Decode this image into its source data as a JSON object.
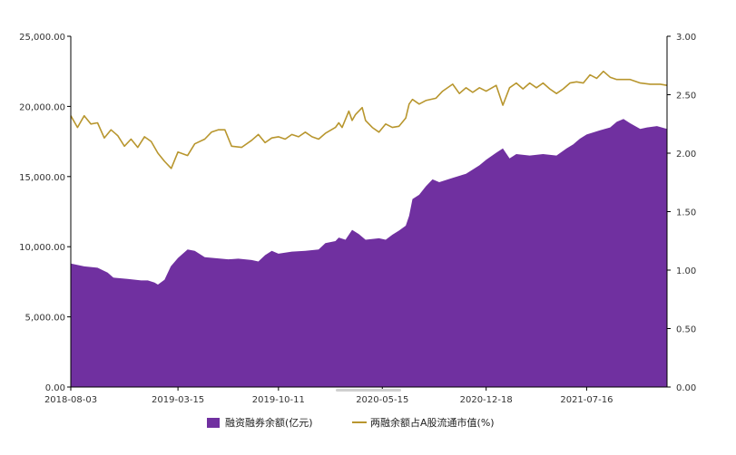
{
  "chart_data": {
    "type": "area",
    "x_ticks": [
      "2018-08-03",
      "2019-03-15",
      "2019-10-11",
      "2020-05-15",
      "2020-12-18",
      "2021-07-16"
    ],
    "x_range": [
      "2018-08-03",
      "2021-12-31"
    ],
    "y_left": {
      "min": 0,
      "max": 25000,
      "ticks": [
        "0.00",
        "5,000.00",
        "10,000.00",
        "15,000.00",
        "20,000.00",
        "25,000.00"
      ]
    },
    "y_right": {
      "min": 0,
      "max": 3,
      "ticks": [
        "0.00",
        "0.50",
        "1.00",
        "1.50",
        "2.00",
        "2.50",
        "3.00"
      ]
    },
    "grid": false,
    "legend_position": "bottom",
    "colors": {
      "area": "#7030A0",
      "line": "#B8962E",
      "axis": "#000000"
    },
    "series": [
      {
        "name": "融资融券余额(亿元)",
        "type": "area",
        "axis": "left",
        "points": [
          [
            "2018-08-03",
            8800
          ],
          [
            "2018-08-31",
            8600
          ],
          [
            "2018-09-28",
            8500
          ],
          [
            "2018-10-19",
            8150
          ],
          [
            "2018-10-31",
            7800
          ],
          [
            "2018-11-30",
            7700
          ],
          [
            "2018-12-28",
            7600
          ],
          [
            "2019-01-11",
            7600
          ],
          [
            "2019-01-25",
            7450
          ],
          [
            "2019-02-01",
            7300
          ],
          [
            "2019-02-15",
            7650
          ],
          [
            "2019-02-28",
            8600
          ],
          [
            "2019-03-15",
            9200
          ],
          [
            "2019-04-04",
            9800
          ],
          [
            "2019-04-19",
            9700
          ],
          [
            "2019-05-10",
            9250
          ],
          [
            "2019-06-28",
            9100
          ],
          [
            "2019-07-19",
            9150
          ],
          [
            "2019-08-16",
            9050
          ],
          [
            "2019-08-30",
            8950
          ],
          [
            "2019-09-13",
            9400
          ],
          [
            "2019-09-27",
            9700
          ],
          [
            "2019-10-11",
            9500
          ],
          [
            "2019-11-08",
            9650
          ],
          [
            "2019-12-06",
            9700
          ],
          [
            "2020-01-03",
            9800
          ],
          [
            "2020-01-17",
            10250
          ],
          [
            "2020-02-07",
            10400
          ],
          [
            "2020-02-14",
            10650
          ],
          [
            "2020-02-28",
            10500
          ],
          [
            "2020-03-06",
            10850
          ],
          [
            "2020-03-13",
            11200
          ],
          [
            "2020-03-27",
            10900
          ],
          [
            "2020-04-10",
            10500
          ],
          [
            "2020-05-08",
            10600
          ],
          [
            "2020-05-22",
            10500
          ],
          [
            "2020-06-05",
            10850
          ],
          [
            "2020-06-19",
            11150
          ],
          [
            "2020-07-03",
            11500
          ],
          [
            "2020-07-10",
            12200
          ],
          [
            "2020-07-17",
            13400
          ],
          [
            "2020-07-31",
            13700
          ],
          [
            "2020-08-14",
            14300
          ],
          [
            "2020-08-28",
            14800
          ],
          [
            "2020-09-11",
            14600
          ],
          [
            "2020-10-09",
            14900
          ],
          [
            "2020-11-06",
            15200
          ],
          [
            "2020-12-04",
            15800
          ],
          [
            "2020-12-18",
            16200
          ],
          [
            "2021-01-08",
            16700
          ],
          [
            "2021-01-22",
            17000
          ],
          [
            "2021-02-05",
            16300
          ],
          [
            "2021-02-19",
            16600
          ],
          [
            "2021-03-19",
            16500
          ],
          [
            "2021-04-16",
            16600
          ],
          [
            "2021-05-14",
            16500
          ],
          [
            "2021-06-04",
            17000
          ],
          [
            "2021-06-18",
            17300
          ],
          [
            "2021-07-02",
            17700
          ],
          [
            "2021-07-16",
            18000
          ],
          [
            "2021-08-13",
            18300
          ],
          [
            "2021-09-03",
            18500
          ],
          [
            "2021-09-17",
            18900
          ],
          [
            "2021-10-01",
            19100
          ],
          [
            "2021-10-15",
            18800
          ],
          [
            "2021-11-05",
            18400
          ],
          [
            "2021-11-19",
            18500
          ],
          [
            "2021-12-10",
            18600
          ],
          [
            "2021-12-31",
            18400
          ]
        ]
      },
      {
        "name": "两融余额占A股流通市值(%)",
        "type": "line",
        "axis": "right",
        "points": [
          [
            "2018-08-03",
            2.32
          ],
          [
            "2018-08-17",
            2.22
          ],
          [
            "2018-08-31",
            2.32
          ],
          [
            "2018-09-14",
            2.25
          ],
          [
            "2018-09-28",
            2.26
          ],
          [
            "2018-10-12",
            2.13
          ],
          [
            "2018-10-26",
            2.2
          ],
          [
            "2018-11-09",
            2.15
          ],
          [
            "2018-11-23",
            2.06
          ],
          [
            "2018-12-07",
            2.12
          ],
          [
            "2018-12-21",
            2.05
          ],
          [
            "2019-01-04",
            2.14
          ],
          [
            "2019-01-18",
            2.1
          ],
          [
            "2019-02-01",
            2.0
          ],
          [
            "2019-02-15",
            1.93
          ],
          [
            "2019-03-01",
            1.87
          ],
          [
            "2019-03-15",
            2.01
          ],
          [
            "2019-04-04",
            1.98
          ],
          [
            "2019-04-19",
            2.08
          ],
          [
            "2019-05-10",
            2.12
          ],
          [
            "2019-05-24",
            2.18
          ],
          [
            "2019-06-07",
            2.2
          ],
          [
            "2019-06-21",
            2.2
          ],
          [
            "2019-07-05",
            2.06
          ],
          [
            "2019-07-26",
            2.05
          ],
          [
            "2019-08-16",
            2.11
          ],
          [
            "2019-08-30",
            2.16
          ],
          [
            "2019-09-13",
            2.09
          ],
          [
            "2019-09-27",
            2.13
          ],
          [
            "2019-10-11",
            2.14
          ],
          [
            "2019-10-25",
            2.12
          ],
          [
            "2019-11-08",
            2.16
          ],
          [
            "2019-11-22",
            2.14
          ],
          [
            "2019-12-06",
            2.18
          ],
          [
            "2019-12-20",
            2.14
          ],
          [
            "2020-01-03",
            2.12
          ],
          [
            "2020-01-17",
            2.17
          ],
          [
            "2020-02-07",
            2.22
          ],
          [
            "2020-02-14",
            2.26
          ],
          [
            "2020-02-21",
            2.22
          ],
          [
            "2020-03-06",
            2.36
          ],
          [
            "2020-03-13",
            2.28
          ],
          [
            "2020-03-20",
            2.33
          ],
          [
            "2020-04-03",
            2.39
          ],
          [
            "2020-04-10",
            2.28
          ],
          [
            "2020-04-24",
            2.22
          ],
          [
            "2020-05-08",
            2.18
          ],
          [
            "2020-05-22",
            2.25
          ],
          [
            "2020-06-05",
            2.22
          ],
          [
            "2020-06-19",
            2.23
          ],
          [
            "2020-07-03",
            2.3
          ],
          [
            "2020-07-10",
            2.42
          ],
          [
            "2020-07-17",
            2.46
          ],
          [
            "2020-07-31",
            2.42
          ],
          [
            "2020-08-14",
            2.45
          ],
          [
            "2020-09-04",
            2.47
          ],
          [
            "2020-09-18",
            2.53
          ],
          [
            "2020-10-09",
            2.59
          ],
          [
            "2020-10-23",
            2.51
          ],
          [
            "2020-11-06",
            2.56
          ],
          [
            "2020-11-20",
            2.52
          ],
          [
            "2020-12-04",
            2.56
          ],
          [
            "2020-12-18",
            2.53
          ],
          [
            "2021-01-08",
            2.58
          ],
          [
            "2021-01-22",
            2.41
          ],
          [
            "2021-02-05",
            2.56
          ],
          [
            "2021-02-19",
            2.6
          ],
          [
            "2021-03-05",
            2.55
          ],
          [
            "2021-03-19",
            2.6
          ],
          [
            "2021-04-02",
            2.56
          ],
          [
            "2021-04-16",
            2.6
          ],
          [
            "2021-04-30",
            2.55
          ],
          [
            "2021-05-14",
            2.51
          ],
          [
            "2021-05-28",
            2.55
          ],
          [
            "2021-06-11",
            2.6
          ],
          [
            "2021-06-25",
            2.61
          ],
          [
            "2021-07-09",
            2.6
          ],
          [
            "2021-07-23",
            2.67
          ],
          [
            "2021-08-06",
            2.64
          ],
          [
            "2021-08-20",
            2.7
          ],
          [
            "2021-09-03",
            2.65
          ],
          [
            "2021-09-17",
            2.63
          ],
          [
            "2021-10-01",
            2.63
          ],
          [
            "2021-10-15",
            2.63
          ],
          [
            "2021-11-05",
            2.6
          ],
          [
            "2021-11-26",
            2.59
          ],
          [
            "2021-12-17",
            2.59
          ],
          [
            "2021-12-31",
            2.58
          ]
        ]
      }
    ]
  }
}
